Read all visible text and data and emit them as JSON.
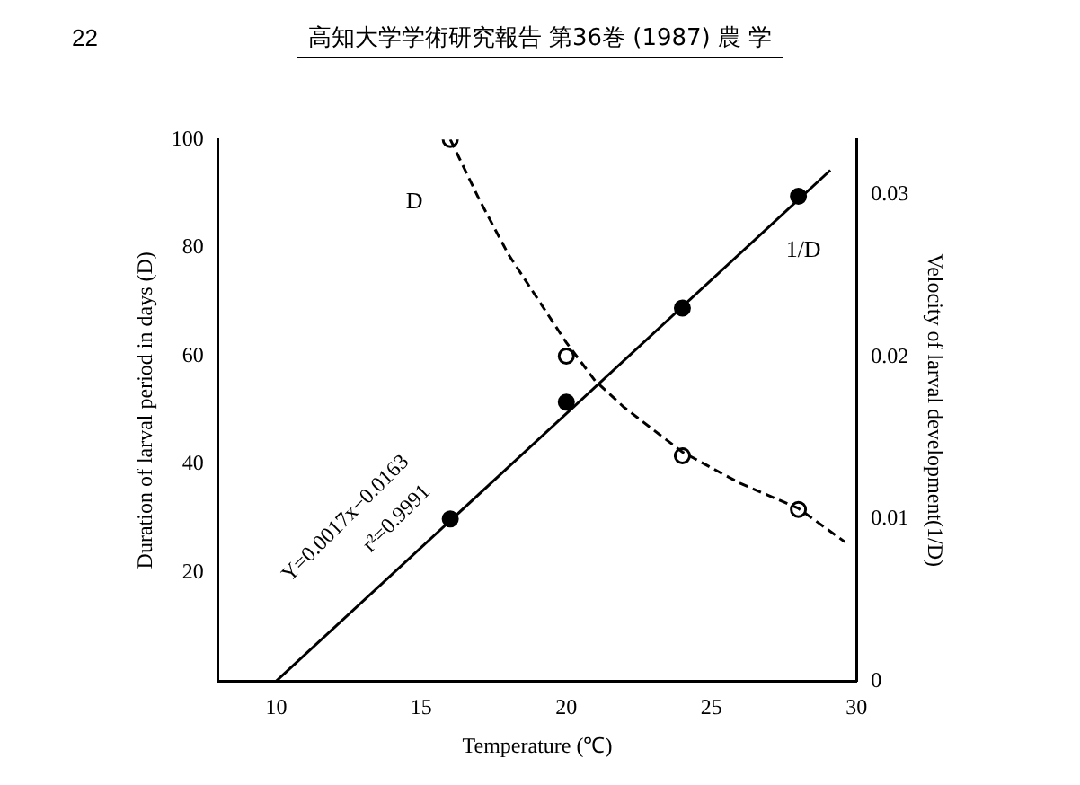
{
  "chart_data": {
    "type": "scatter",
    "title": "高知大学学術研究報告 第36巻 (1987) 農 学",
    "xlabel": "Temperature (℃)",
    "ylabel": "Duration of larval period in days (D)",
    "y2label": "Velocity of larval development(1/D)",
    "xlim": [
      8,
      30
    ],
    "xticks": [
      10,
      15,
      20,
      25,
      30
    ],
    "ylim": [
      0,
      100
    ],
    "yticks": [
      20,
      40,
      60,
      80,
      100
    ],
    "y2lim": [
      0,
      0.0334
    ],
    "y2ticks": [
      0,
      0.01,
      0.02,
      0.03
    ],
    "grid": false,
    "legend": false,
    "series": [
      {
        "type": "line",
        "name": "D",
        "color": "#000000",
        "line_style": "dashed",
        "marker": "none",
        "x": [
          16,
          17,
          18,
          20,
          21,
          22,
          24,
          26,
          28,
          29.6
        ],
        "values": [
          100,
          88.9,
          78.8,
          62.5,
          55.4,
          50.5,
          42.3,
          36.5,
          31.9,
          25.7
        ]
      },
      {
        "type": "line",
        "name": "1/D",
        "color": "#000000",
        "line_style": "solid",
        "marker": "none",
        "axis": "y2",
        "x": [
          10,
          29.1
        ],
        "values": [
          0,
          0.0315
        ]
      },
      {
        "color": "#000000",
        "marker": "circle",
        "x": [
          16,
          20,
          24,
          28
        ],
        "values": [
          100,
          60,
          41.6,
          31.7
        ]
      },
      {
        "color": "#000000",
        "marker": "circle",
        "axis": "y2",
        "x": [
          16,
          20,
          24,
          28
        ],
        "values": [
          0.01,
          0.0172,
          0.023,
          0.0299
        ]
      }
    ],
    "annotations": [
      "22",
      "Y=0.0017x−0.0163",
      "r²=0.9991"
    ]
  }
}
